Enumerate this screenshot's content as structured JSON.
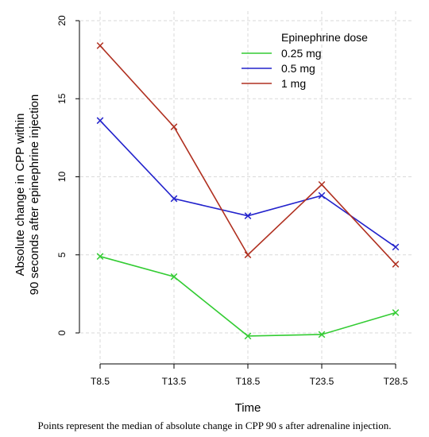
{
  "chart_data": {
    "type": "line",
    "x": [
      "T8.5",
      "T13.5",
      "T18.5",
      "T23.5",
      "T28.5"
    ],
    "xlabel": "Time",
    "ylabel_lines": [
      "Absolute change in CPP within",
      "90 seconds after epinephrine injection"
    ],
    "ylim": [
      -2,
      20
    ],
    "yticks": [
      0,
      5,
      10,
      15,
      20
    ],
    "grid": true,
    "legend": {
      "title": "Epinephrine dose",
      "placement": "top-right"
    },
    "marker": "x",
    "series": [
      {
        "name": "0.25 mg",
        "color": "#33cc33",
        "values": [
          4.9,
          3.6,
          -0.2,
          -0.1,
          1.3
        ]
      },
      {
        "name": "0.5 mg",
        "color": "#2222cc",
        "values": [
          13.6,
          8.6,
          7.5,
          8.8,
          5.5
        ]
      },
      {
        "name": "1 mg",
        "color": "#b03020",
        "values": [
          18.4,
          13.2,
          5.0,
          9.5,
          4.4
        ]
      }
    ]
  },
  "caption": "Points represent the median of absolute change in CPP 90 s after adrenaline injection."
}
